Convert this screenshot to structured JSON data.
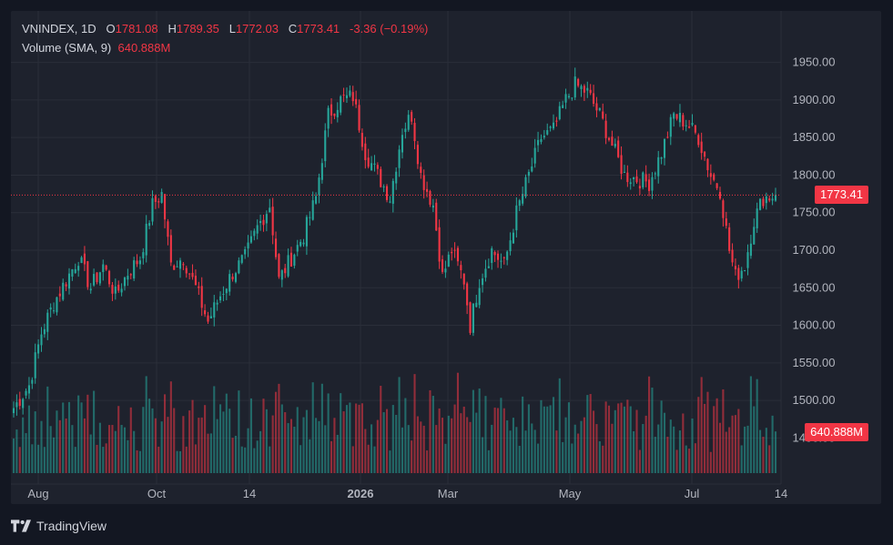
{
  "legend": {
    "symbol": "VNINDEX",
    "interval": "1D",
    "open_label": "O",
    "open": "1781.08",
    "high_label": "H",
    "high": "1789.35",
    "low_label": "L",
    "low": "1772.03",
    "close_label": "C",
    "close": "1773.41",
    "change": "-3.36 (−0.19%)",
    "volume_label": "Volume (SMA, 9)",
    "volume_value": "640.888M"
  },
  "last_price_tag": "1773.41",
  "volume_tag": "640.888M",
  "footer": {
    "brand": "TradingView"
  },
  "colors": {
    "up": "#26a69a",
    "down": "#f23645",
    "background": "#1e222d",
    "grid": "#2a2e39",
    "text": "#d1d4dc"
  },
  "chart_data": {
    "type": "candlestick",
    "title": "VNINDEX, 1D",
    "ylim": [
      1425,
      1975
    ],
    "y_ticks": [
      "1450.00",
      "1500.00",
      "1550.00",
      "1600.00",
      "1650.00",
      "1700.00",
      "1750.00",
      "1800.00",
      "1850.00",
      "1900.00",
      "1950.00"
    ],
    "x_ticks": [
      "Aug",
      "Oct",
      "14",
      "2026",
      "Mar",
      "May",
      "Jul",
      "14"
    ],
    "last_price": 1773.41,
    "price_anchors": [
      [
        0,
        1490
      ],
      [
        5,
        1520
      ],
      [
        9,
        1590
      ],
      [
        13,
        1630
      ],
      [
        17,
        1660
      ],
      [
        21,
        1690
      ],
      [
        25,
        1650
      ],
      [
        29,
        1680
      ],
      [
        33,
        1640
      ],
      [
        37,
        1670
      ],
      [
        41,
        1690
      ],
      [
        45,
        1760
      ],
      [
        48,
        1775
      ],
      [
        51,
        1680
      ],
      [
        55,
        1690
      ],
      [
        59,
        1650
      ],
      [
        63,
        1605
      ],
      [
        67,
        1640
      ],
      [
        71,
        1670
      ],
      [
        75,
        1690
      ],
      [
        79,
        1730
      ],
      [
        83,
        1760
      ],
      [
        86,
        1660
      ],
      [
        90,
        1690
      ],
      [
        94,
        1720
      ],
      [
        98,
        1770
      ],
      [
        102,
        1880
      ],
      [
        106,
        1900
      ],
      [
        110,
        1905
      ],
      [
        114,
        1830
      ],
      [
        118,
        1800
      ],
      [
        122,
        1770
      ],
      [
        126,
        1860
      ],
      [
        129,
        1880
      ],
      [
        132,
        1800
      ],
      [
        136,
        1760
      ],
      [
        139,
        1665
      ],
      [
        142,
        1700
      ],
      [
        146,
        1660
      ],
      [
        148,
        1600
      ],
      [
        151,
        1660
      ],
      [
        155,
        1700
      ],
      [
        159,
        1680
      ],
      [
        163,
        1750
      ],
      [
        167,
        1800
      ],
      [
        171,
        1850
      ],
      [
        175,
        1860
      ],
      [
        179,
        1900
      ],
      [
        182,
        1920
      ],
      [
        186,
        1910
      ],
      [
        190,
        1880
      ],
      [
        194,
        1840
      ],
      [
        198,
        1800
      ],
      [
        202,
        1795
      ],
      [
        206,
        1790
      ],
      [
        210,
        1830
      ],
      [
        214,
        1880
      ],
      [
        218,
        1870
      ],
      [
        222,
        1850
      ],
      [
        226,
        1800
      ],
      [
        229,
        1780
      ],
      [
        232,
        1700
      ],
      [
        234,
        1665
      ],
      [
        237,
        1680
      ],
      [
        240,
        1740
      ],
      [
        243,
        1770
      ],
      [
        247,
        1773
      ]
    ],
    "volume_range_millions": [
      350,
      1050
    ],
    "volume_sma_last": "640.888M"
  }
}
